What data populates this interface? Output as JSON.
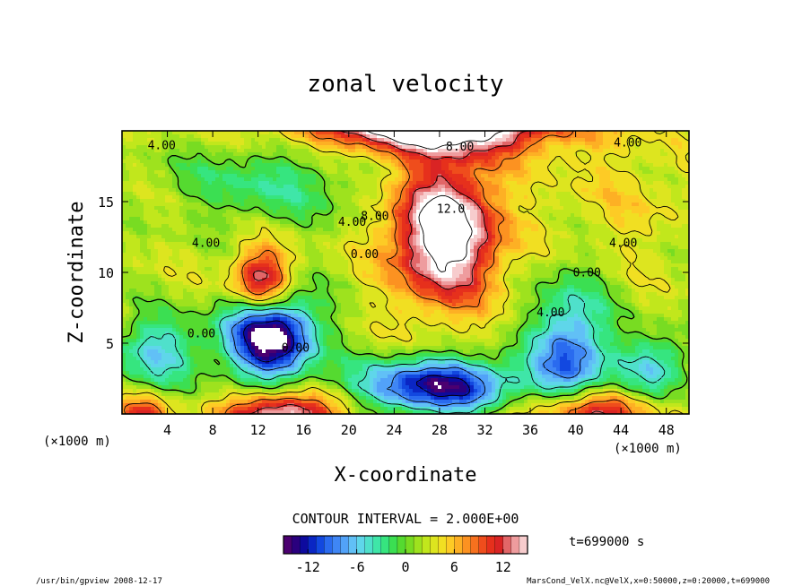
{
  "chart_data": {
    "type": "heatmap",
    "title": "zonal velocity",
    "xlabel": "X-coordinate",
    "ylabel": "Z-coordinate",
    "x_unit": "(×1000 m)",
    "y_unit": "(×1000 m)",
    "xlim": [
      0,
      50
    ],
    "ylim": [
      0,
      20
    ],
    "x_ticks": [
      4,
      8,
      12,
      16,
      20,
      24,
      28,
      32,
      36,
      40,
      44,
      48
    ],
    "y_ticks": [
      5,
      10,
      15
    ],
    "contour_interval_text": "CONTOUR INTERVAL = 2.000E+00",
    "contour_labels": [
      {
        "text": "4.00",
        "x": 3.5,
        "z": 18.7
      },
      {
        "text": "8.00",
        "x": 29.8,
        "z": 18.6
      },
      {
        "text": "4.00",
        "x": 44.6,
        "z": 18.9
      },
      {
        "text": "12.0",
        "x": 29.0,
        "z": 14.2
      },
      {
        "text": "8.00",
        "x": 22.3,
        "z": 13.7
      },
      {
        "text": "4.00",
        "x": 20.3,
        "z": 13.3
      },
      {
        "text": "0.00",
        "x": 21.4,
        "z": 11.0
      },
      {
        "text": "4.00",
        "x": 7.4,
        "z": 11.8
      },
      {
        "text": "4.00",
        "x": 44.2,
        "z": 11.8
      },
      {
        "text": "0.00",
        "x": 41.0,
        "z": 9.7
      },
      {
        "text": "4.00",
        "x": 37.8,
        "z": 6.9
      },
      {
        "text": "0.00",
        "x": 7.0,
        "z": 5.4
      },
      {
        "text": "0.00",
        "x": 15.3,
        "z": 4.4
      }
    ],
    "colorbar": {
      "vmin": -15,
      "vmax": 15,
      "ticks": [
        -12,
        -6,
        0,
        6,
        12
      ],
      "colors": [
        "#4b0070",
        "#2a007e",
        "#0d0a9e",
        "#0a26c4",
        "#1248e0",
        "#2a6bef",
        "#3f86f5",
        "#52a2f8",
        "#61c0f6",
        "#5fd6ea",
        "#4fe0cb",
        "#3fe6a8",
        "#36e57f",
        "#3bdf52",
        "#55da30",
        "#78dc22",
        "#9ee21e",
        "#c1e71c",
        "#dde51f",
        "#f1df22",
        "#fdcb25",
        "#fdb024",
        "#fc9221",
        "#f7711e",
        "#ef4d1c",
        "#e6301c",
        "#da2424",
        "#e26668",
        "#ee9c9e",
        "#f7cccd"
      ],
      "out_of_range_color": "#ffffff"
    },
    "timestamp_label": "t=699000 s",
    "footer_left": "/usr/bin/gpview  2008-12-17",
    "footer_right": "MarsCond_VelX.nc@VelX,x=0:50000,z=0:20000,t=699000",
    "field_features": [
      {
        "kind": "jet",
        "value": 17,
        "x": 28.5,
        "z": 12.8,
        "sx": 3.3,
        "sz": 3.4
      },
      {
        "kind": "jet",
        "value": 20,
        "x": 27.5,
        "z": 20.8,
        "sx": 8.0,
        "sz": 1.6
      },
      {
        "kind": "jet",
        "value": 14,
        "x": 12.3,
        "z": 9.2,
        "sx": 1.8,
        "sz": 1.7
      },
      {
        "kind": "jet",
        "value": 14,
        "x": 14.0,
        "z": 0.0,
        "sx": 3.5,
        "sz": 1.1
      },
      {
        "kind": "jet",
        "value": 13,
        "x": 40.5,
        "z": 0.0,
        "sx": 4.0,
        "sz": 1.3
      },
      {
        "kind": "jet",
        "value": 8,
        "x": 1.8,
        "z": 0.0,
        "sx": 1.6,
        "sz": 0.9
      },
      {
        "kind": "counter",
        "value": -20,
        "x": 13.0,
        "z": 5.6,
        "sx": 2.8,
        "sz": 2.2
      },
      {
        "kind": "counter",
        "value": -16,
        "x": 28.0,
        "z": 2.0,
        "sx": 5.0,
        "sz": 1.4
      },
      {
        "kind": "counter",
        "value": -12,
        "x": 39.5,
        "z": 4.0,
        "sx": 2.4,
        "sz": 3.6
      },
      {
        "kind": "counter",
        "value": -8,
        "x": 3.0,
        "z": 4.4,
        "sx": 2.6,
        "sz": 1.8
      },
      {
        "kind": "counter",
        "value": -8,
        "x": 47.0,
        "z": 3.3,
        "sx": 2.2,
        "sz": 1.6
      },
      {
        "kind": "counter",
        "value": -5,
        "x": 13.0,
        "z": 16.5,
        "sx": 6.0,
        "sz": 2.2
      }
    ]
  }
}
